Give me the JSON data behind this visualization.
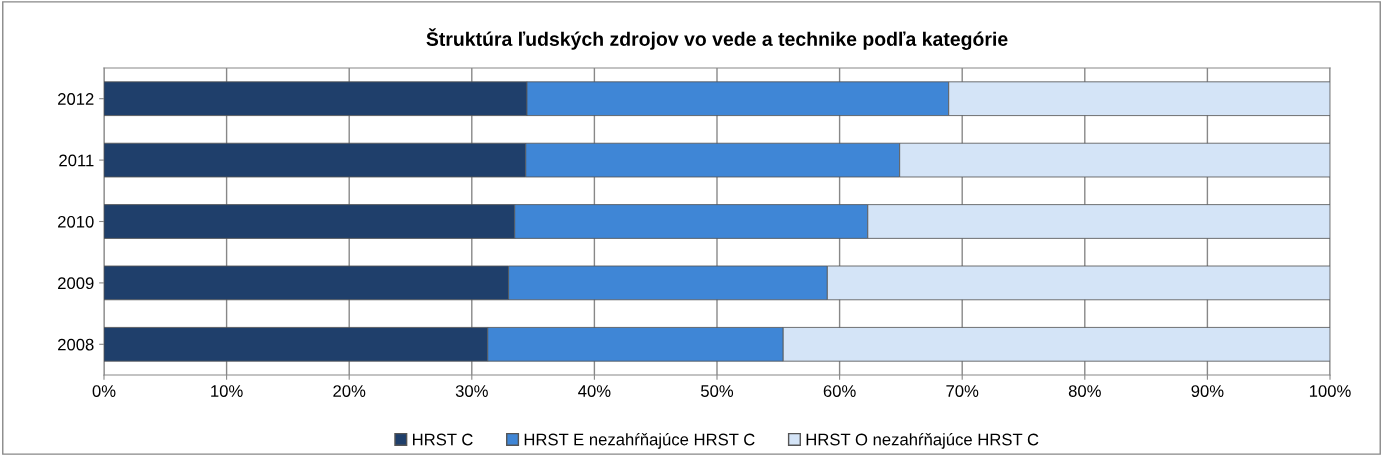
{
  "chart_data": {
    "type": "bar",
    "orientation": "horizontal",
    "stacked": true,
    "title": "Štruktúra ľudských zdrojov vo vede a technike podľa kategórie",
    "categories": [
      "2012",
      "2011",
      "2010",
      "2009",
      "2008"
    ],
    "series": [
      {
        "name": "HRST C",
        "color": "#1f3f6b",
        "values": [
          34.5,
          34.4,
          33.5,
          33.0,
          31.3
        ]
      },
      {
        "name": "HRST E nezahŕňajúce HRST C",
        "color": "#3f86d6",
        "values": [
          34.4,
          30.5,
          28.8,
          26.0,
          24.1
        ]
      },
      {
        "name": "HRST O nezahŕňajúce HRST C",
        "color": "#d4e4f7",
        "values": [
          31.1,
          35.1,
          37.7,
          41.0,
          44.6
        ]
      }
    ],
    "xlim": [
      0,
      100
    ],
    "xticks": [
      {
        "value": 0,
        "label": "0%"
      },
      {
        "value": 10,
        "label": "10%"
      },
      {
        "value": 20,
        "label": "20%"
      },
      {
        "value": 30,
        "label": "30%"
      },
      {
        "value": 40,
        "label": "40%"
      },
      {
        "value": 50,
        "label": "50%"
      },
      {
        "value": 60,
        "label": "60%"
      },
      {
        "value": 70,
        "label": "70%"
      },
      {
        "value": 80,
        "label": "80%"
      },
      {
        "value": 90,
        "label": "90%"
      },
      {
        "value": 100,
        "label": "100%"
      }
    ],
    "grid": "x",
    "legend": "bottom"
  }
}
